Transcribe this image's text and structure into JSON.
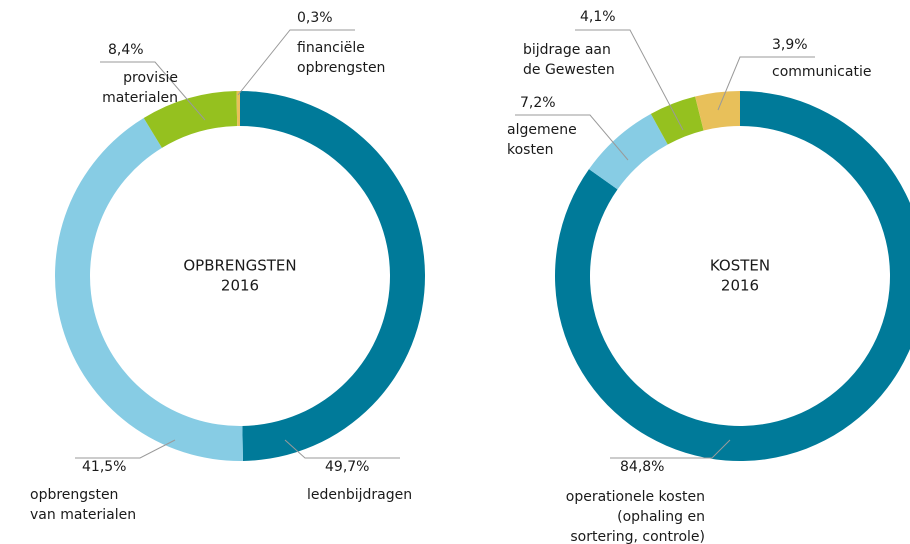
{
  "chart_data": [
    {
      "type": "donut",
      "center_text": [
        "OPBRENGSTEN",
        "2016"
      ],
      "categories": [
        [
          "ledenbijdragen"
        ],
        [
          "opbrengsten",
          "van materialen"
        ],
        [
          "provisie",
          "materialen"
        ],
        [
          "financiële",
          "opbrengsten"
        ]
      ],
      "values": [
        49.7,
        41.5,
        8.4,
        0.3
      ],
      "value_labels": [
        "49,7%",
        "41,5%",
        "8,4%",
        "0,3%"
      ],
      "colors": [
        "#007a99",
        "#87cce4",
        "#95c11f",
        "#e8c05a"
      ]
    },
    {
      "type": "donut",
      "center_text": [
        "KOSTEN",
        "2016"
      ],
      "categories": [
        [
          "operationele kosten",
          "(ophaling en",
          "sortering, controle)"
        ],
        [
          "algemene",
          "kosten"
        ],
        [
          "bijdrage aan",
          "de Gewesten"
        ],
        [
          "communicatie"
        ]
      ],
      "values": [
        84.8,
        7.2,
        4.1,
        3.9
      ],
      "value_labels": [
        "84,8%",
        "7,2%",
        "4,1%",
        "3,9%"
      ],
      "colors": [
        "#007a99",
        "#87cce4",
        "#95c11f",
        "#e8c05a"
      ]
    }
  ]
}
